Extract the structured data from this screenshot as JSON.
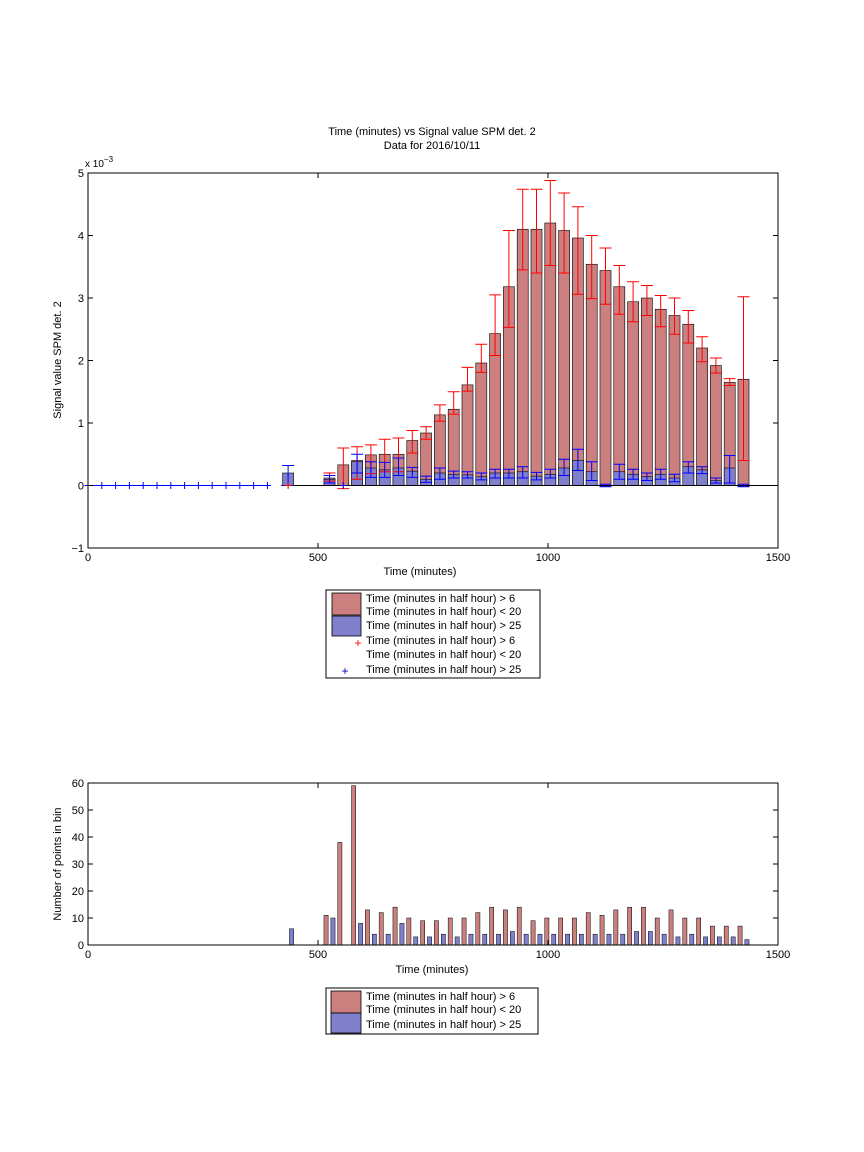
{
  "chart_data": [
    {
      "type": "bar",
      "title": "Time (minutes) vs Signal value SPM det. 2",
      "subtitle": "Data for 2016/10/11",
      "xlabel": "Time (minutes)",
      "ylabel": "Signal value SPM det. 2",
      "y_exponent_label": "x 10",
      "y_exponent_power": "−3",
      "xlim": [
        0,
        1500
      ],
      "ylim": [
        -1,
        5
      ],
      "y_scale_factor": 0.001,
      "xticks": [
        "0",
        "500",
        "1000",
        "1500"
      ],
      "yticks": [
        "−1",
        "0",
        "1",
        "2",
        "3",
        "4",
        "5"
      ],
      "grid": false,
      "legend_position": "below",
      "legend": [
        "Time (minutes in half hour) > 6",
        "Time (minutes in half hour) < 20",
        "Time (minutes in half hour) > 25",
        "Time (minutes in half hour) > 6",
        "Time (minutes in half hour) < 20",
        "Time (minutes in half hour) > 25"
      ],
      "colors": {
        "red_fill": "#cc7f7f",
        "blue_fill": "#7f7fcc",
        "red_line": "#ff0000",
        "blue_line": "#0000ff",
        "edge": "#000000"
      },
      "series": [
        {
          "name": "Time (minutes in half hour) > 6 Time (minutes in half hour) < 20",
          "x": [
            525,
            555,
            585,
            615,
            645,
            675,
            705,
            735,
            765,
            795,
            825,
            855,
            885,
            915,
            945,
            975,
            1005,
            1035,
            1065,
            1095,
            1125,
            1155,
            1185,
            1215,
            1245,
            1275,
            1305,
            1335,
            1365,
            1395,
            1425
          ],
          "values": [
            0.12,
            0.33,
            0.4,
            0.49,
            0.5,
            0.5,
            0.72,
            0.84,
            1.13,
            1.22,
            1.61,
            1.96,
            2.43,
            3.18,
            4.1,
            4.1,
            4.2,
            4.08,
            3.96,
            3.54,
            3.44,
            3.18,
            2.94,
            3.0,
            2.82,
            2.72,
            2.58,
            2.2,
            1.92,
            1.65,
            1.7
          ],
          "err_low": [
            0.05,
            0.38,
            0.3,
            0.3,
            0.28,
            0.28,
            0.2,
            0.1,
            0.1,
            0.08,
            0.1,
            0.15,
            0.35,
            0.65,
            0.65,
            0.7,
            0.68,
            0.68,
            0.9,
            0.55,
            0.54,
            0.44,
            0.32,
            0.28,
            0.28,
            0.3,
            0.3,
            0.22,
            0.12,
            0.05,
            1.3
          ],
          "err_high": [
            0.08,
            0.27,
            0.22,
            0.16,
            0.24,
            0.26,
            0.16,
            0.1,
            0.16,
            0.28,
            0.28,
            0.3,
            0.62,
            0.9,
            0.64,
            0.64,
            0.68,
            0.6,
            0.5,
            0.46,
            0.36,
            0.34,
            0.32,
            0.2,
            0.22,
            0.28,
            0.22,
            0.18,
            0.12,
            0.06,
            1.32
          ]
        },
        {
          "name": "Time (minutes in half hour) > 25",
          "x": [
            435,
            525,
            585,
            615,
            645,
            675,
            705,
            735,
            765,
            795,
            825,
            855,
            885,
            915,
            945,
            975,
            1005,
            1035,
            1065,
            1095,
            1125,
            1155,
            1185,
            1215,
            1245,
            1275,
            1305,
            1335,
            1365,
            1395,
            1425
          ],
          "values": [
            0.2,
            0.1,
            0.38,
            0.28,
            0.25,
            0.28,
            0.23,
            0.1,
            0.2,
            0.18,
            0.17,
            0.14,
            0.2,
            0.2,
            0.22,
            0.15,
            0.18,
            0.28,
            0.4,
            0.22,
            0.0,
            0.22,
            0.18,
            0.14,
            0.18,
            0.12,
            0.3,
            0.25,
            0.08,
            0.28,
            0.0
          ],
          "err_low": [
            0.2,
            0.06,
            0.18,
            0.15,
            0.12,
            0.12,
            0.1,
            0.05,
            0.1,
            0.06,
            0.05,
            0.05,
            0.08,
            0.08,
            0.1,
            0.06,
            0.06,
            0.12,
            0.16,
            0.14,
            0.02,
            0.12,
            0.08,
            0.06,
            0.08,
            0.06,
            0.1,
            0.06,
            0.04,
            0.24,
            0.02
          ],
          "err_high": [
            0.12,
            0.06,
            0.12,
            0.1,
            0.12,
            0.16,
            0.06,
            0.05,
            0.08,
            0.05,
            0.05,
            0.06,
            0.06,
            0.06,
            0.08,
            0.06,
            0.08,
            0.14,
            0.18,
            0.16,
            0.02,
            0.12,
            0.08,
            0.06,
            0.08,
            0.06,
            0.08,
            0.05,
            0.04,
            0.2,
            0.02
          ]
        }
      ],
      "marker_series": [
        {
          "name": "Time (minutes in half hour) > 6 Time (minutes in half hour) < 20",
          "marker": "+",
          "x": [
            435
          ],
          "y": [
            0.0
          ]
        },
        {
          "name": "Time (minutes in half hour) > 25",
          "marker": "+",
          "x": [
            0,
            30,
            60,
            90,
            120,
            150,
            180,
            210,
            240,
            270,
            300,
            330,
            360,
            390,
            555
          ],
          "y": [
            0,
            0,
            0,
            0,
            0,
            0,
            0,
            0,
            0,
            0,
            0,
            0,
            0,
            0,
            0
          ]
        }
      ]
    },
    {
      "type": "bar",
      "xlabel": "Time (minutes)",
      "ylabel": "Number of points in bin",
      "xlim": [
        0,
        1500
      ],
      "ylim": [
        0,
        60
      ],
      "xticks": [
        "0",
        "500",
        "1000",
        "1500"
      ],
      "yticks": [
        "0",
        "10",
        "20",
        "30",
        "40",
        "50",
        "60"
      ],
      "grid": false,
      "legend_position": "below",
      "legend": [
        "Time (minutes in half hour) > 6",
        "Time (minutes in half hour) < 20",
        "Time (minutes in half hour) > 25"
      ],
      "series": [
        {
          "name": "Time (minutes in half hour) > 6 Time (minutes in half hour) < 20",
          "x": [
            525,
            555,
            585,
            615,
            645,
            675,
            705,
            735,
            765,
            795,
            825,
            855,
            885,
            915,
            945,
            975,
            1005,
            1035,
            1065,
            1095,
            1125,
            1155,
            1185,
            1215,
            1245,
            1275,
            1305,
            1335,
            1365,
            1395,
            1425
          ],
          "values": [
            11,
            38,
            59,
            13,
            12,
            14,
            10,
            9,
            9,
            10,
            10,
            12,
            14,
            13,
            14,
            9,
            10,
            10,
            10,
            12,
            11,
            13,
            14,
            14,
            10,
            13,
            10,
            10,
            7,
            7,
            7
          ]
        },
        {
          "name": "Time (minutes in half hour) > 25",
          "x": [
            435,
            525,
            585,
            615,
            645,
            675,
            705,
            735,
            765,
            795,
            825,
            855,
            885,
            915,
            945,
            975,
            1005,
            1035,
            1065,
            1095,
            1125,
            1155,
            1185,
            1215,
            1245,
            1275,
            1305,
            1335,
            1365,
            1395,
            1425
          ],
          "values": [
            6,
            10,
            8,
            4,
            4,
            8,
            3,
            3,
            4,
            3,
            4,
            4,
            4,
            5,
            4,
            4,
            4,
            4,
            4,
            4,
            4,
            4,
            5,
            5,
            4,
            3,
            4,
            3,
            3,
            3,
            2
          ]
        }
      ]
    }
  ]
}
